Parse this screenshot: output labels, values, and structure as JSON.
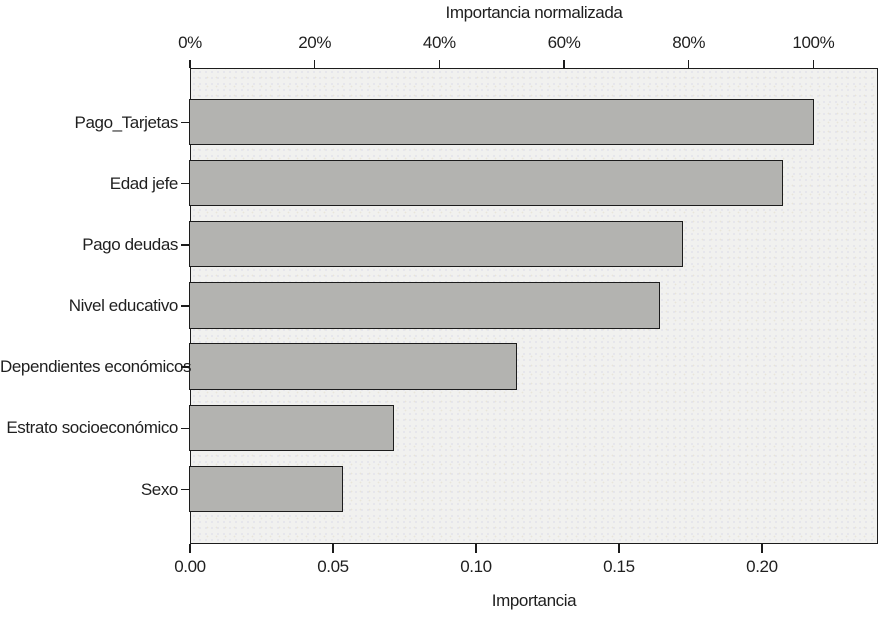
{
  "chart_data": {
    "type": "bar",
    "orientation": "horizontal",
    "title": "Importancia normalizada",
    "xlabel": "Importancia",
    "top_axis": {
      "title": "Importancia normalizada",
      "tick_labels": [
        "0%",
        "20%",
        "40%",
        "60%",
        "80%",
        "100%"
      ],
      "range_percent": [
        0,
        100
      ],
      "note": "percent of maximum importance"
    },
    "bottom_axis": {
      "label": "Importancia",
      "tick_labels": [
        "0.00",
        "0.05",
        "0.10",
        "0.15",
        "0.20"
      ],
      "range": [
        0,
        0.2406
      ]
    },
    "categories": [
      "Pago_Tarjetas",
      "Edad jefe",
      "Pago deudas",
      "Nivel educativo",
      "Dependientes económicos",
      "Estrato socioeconómico",
      "Sexo"
    ],
    "values": [
      0.218,
      0.207,
      0.172,
      0.164,
      0.114,
      0.071,
      0.053
    ],
    "normalized_percent": [
      100,
      95.0,
      78.9,
      75.2,
      52.3,
      32.6,
      24.3
    ],
    "grid": "off",
    "legend": "none",
    "bar_color": "#b3b3b0",
    "bar_border_color": "#1c1c1c",
    "plot_bg_color": "#f1f1ef",
    "text_color": "#1f1f1f"
  }
}
